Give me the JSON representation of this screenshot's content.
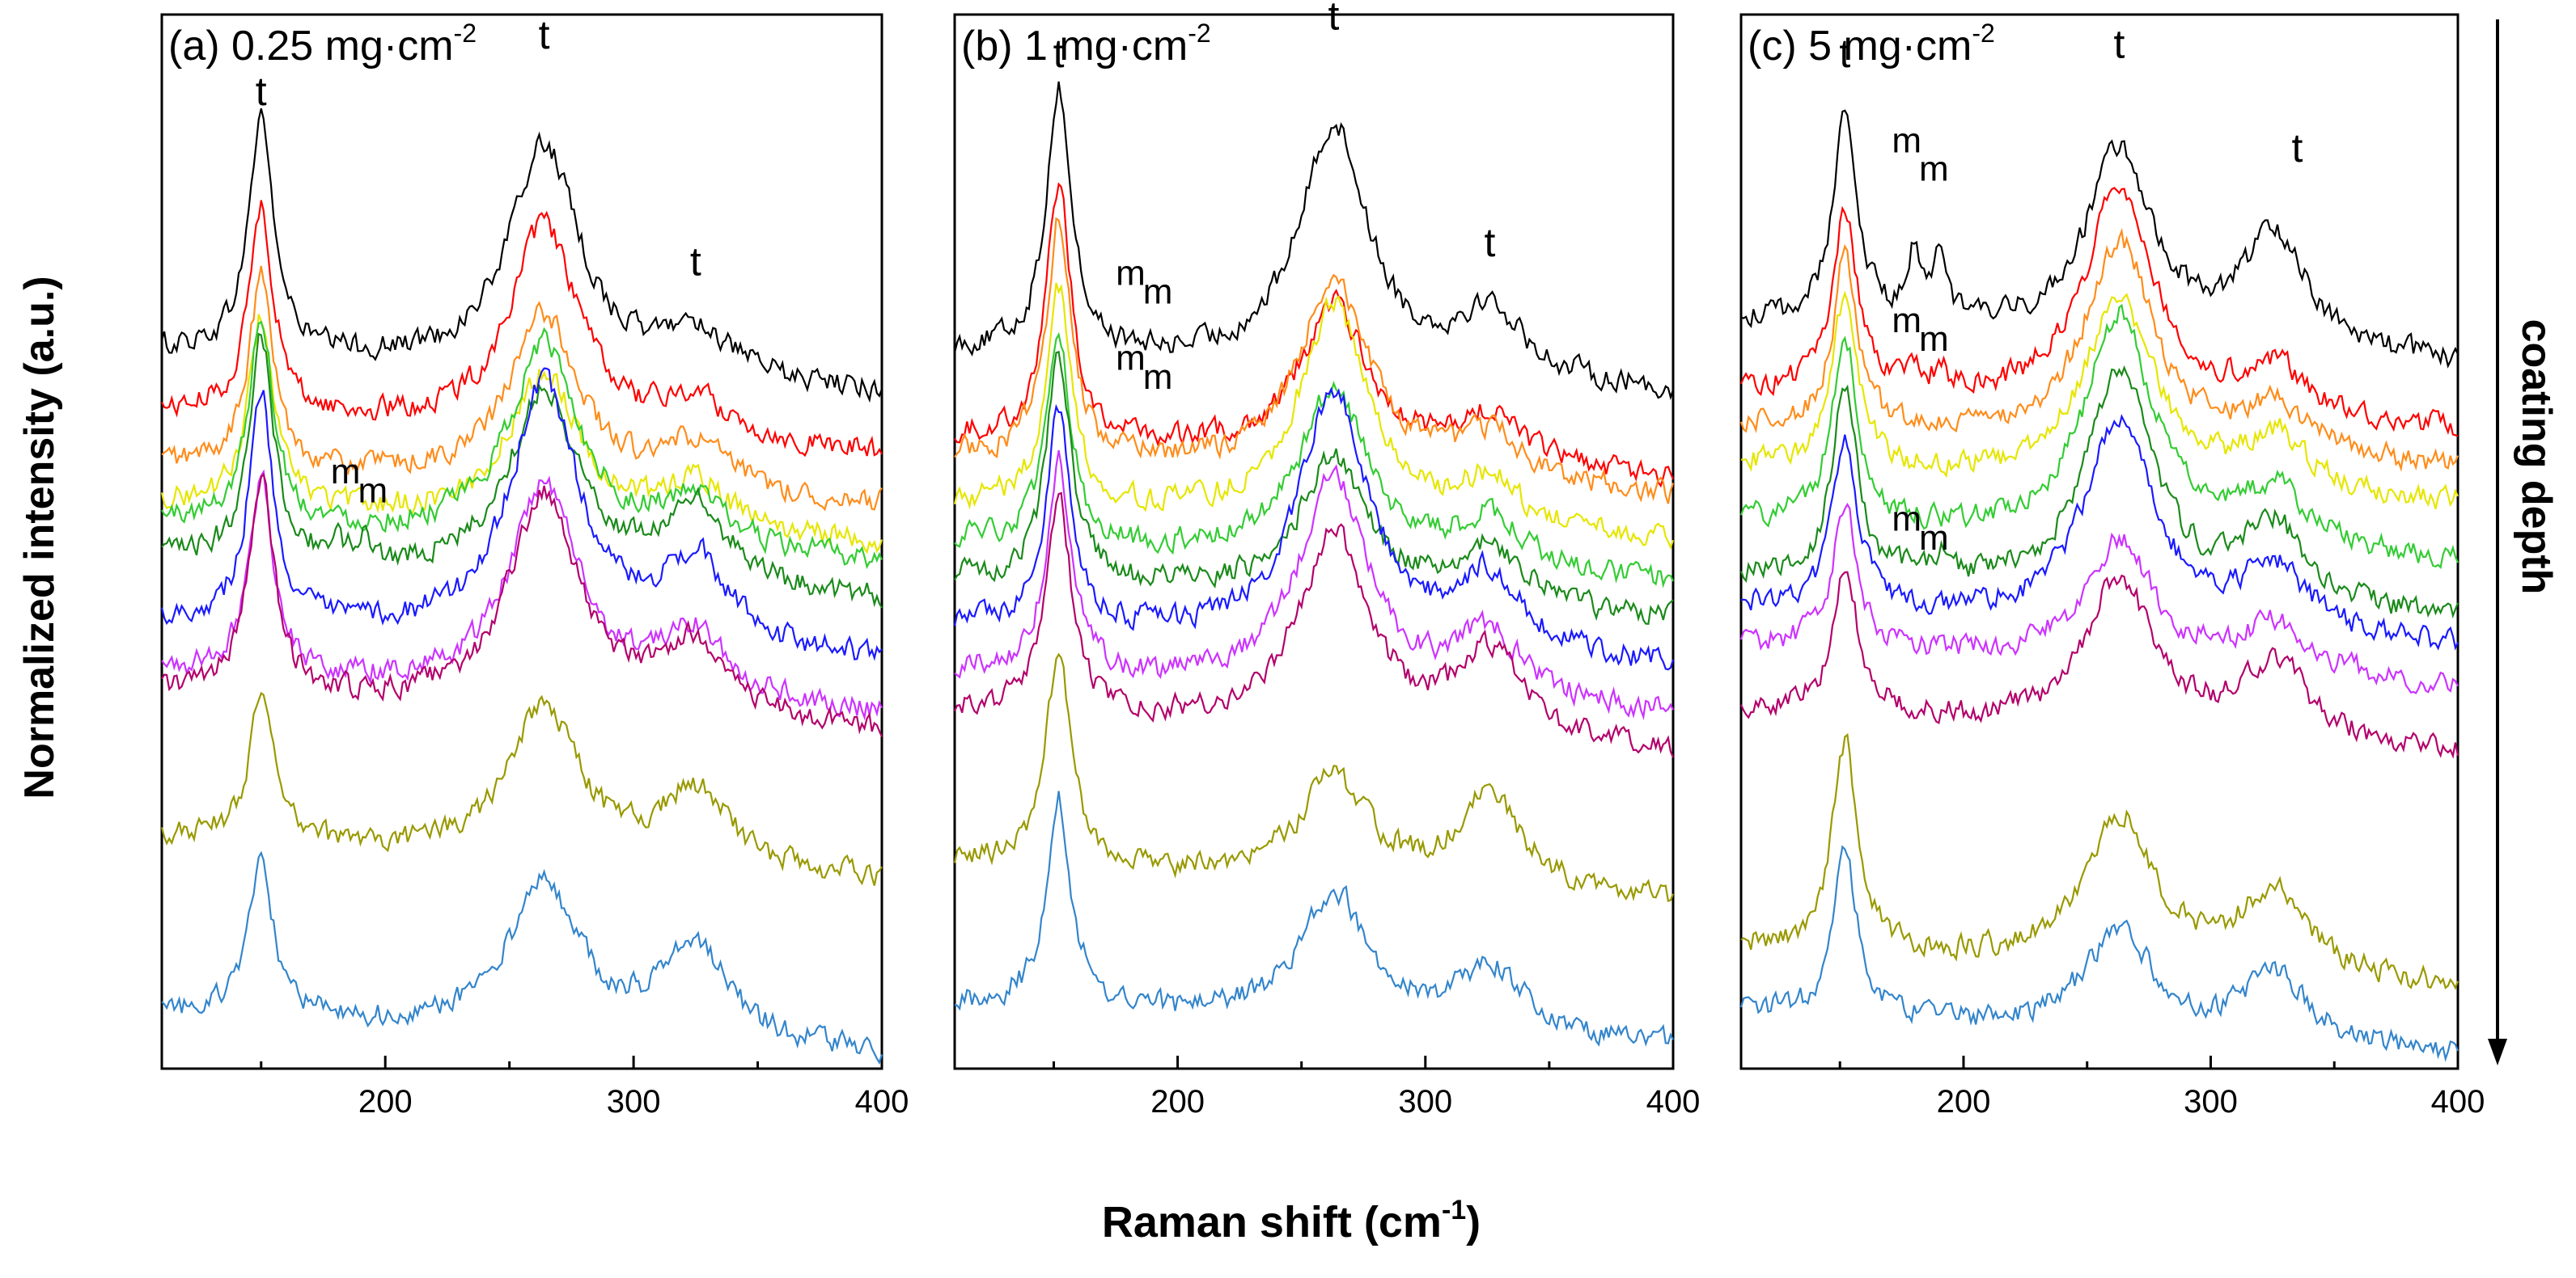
{
  "y_label": "Normalized intensity (a.u.)",
  "x_label": "Raman shift (cm",
  "x_label_sup": "-1",
  "x_label_close": ")",
  "depth_label": "coating depth",
  "series_colors": [
    "#000000",
    "#ff0000",
    "#ff8c1a",
    "#e6e600",
    "#33cc33",
    "#1a8a1a",
    "#1a1aff",
    "#cc33ff",
    "#b3006b",
    "#999900",
    "#3385cc"
  ],
  "chart_data": [
    {
      "type": "line",
      "panel": "a",
      "title": "(a) 0.25 mg·cm",
      "title_sup": "-2",
      "xlim": [
        110,
        400
      ],
      "x_ticks": [
        200,
        300,
        400
      ],
      "x_tick_labels": [
        "200",
        "300",
        "400"
      ],
      "peaks": {
        "p1": 150,
        "p2": 264,
        "p3": 325,
        "m1": 180,
        "m2": 191
      },
      "series": [
        {
          "color": "#000000",
          "baseline": 0.74,
          "a1": 0.25,
          "a2": 0.24,
          "a3": 0.05,
          "am": 0.0
        },
        {
          "color": "#ff0000",
          "baseline": 0.675,
          "a1": 0.22,
          "a2": 0.22,
          "a3": 0.04,
          "am": 0.0
        },
        {
          "color": "#ff8c1a",
          "baseline": 0.62,
          "a1": 0.2,
          "a2": 0.18,
          "a3": 0.05,
          "am": 0.0
        },
        {
          "color": "#e6e600",
          "baseline": 0.58,
          "a1": 0.2,
          "a2": 0.16,
          "a3": 0.05,
          "am": 0.0
        },
        {
          "color": "#33cc33",
          "baseline": 0.56,
          "a1": 0.22,
          "a2": 0.21,
          "a3": 0.05,
          "am": 0.0
        },
        {
          "color": "#1a8a1a",
          "baseline": 0.52,
          "a1": 0.24,
          "a2": 0.2,
          "a3": 0.08,
          "am": 0.02
        },
        {
          "color": "#1a1aff",
          "baseline": 0.455,
          "a1": 0.24,
          "a2": 0.27,
          "a3": 0.09,
          "am": 0.0
        },
        {
          "color": "#cc33ff",
          "baseline": 0.4,
          "a1": 0.21,
          "a2": 0.22,
          "a3": 0.07,
          "am": 0.0
        },
        {
          "color": "#b3006b",
          "baseline": 0.38,
          "a1": 0.23,
          "a2": 0.23,
          "a3": 0.08,
          "am": 0.0
        },
        {
          "color": "#999900",
          "baseline": 0.225,
          "a1": 0.15,
          "a2": 0.16,
          "a3": 0.08,
          "am": 0.0
        },
        {
          "color": "#3385cc",
          "baseline": 0.04,
          "a1": 0.16,
          "a2": 0.16,
          "a3": 0.1,
          "am": 0.0
        }
      ],
      "annotations": [
        {
          "text": "t",
          "x": 150,
          "y": 1.0
        },
        {
          "text": "t",
          "x": 264,
          "y": 1.06
        },
        {
          "text": "t",
          "x": 325,
          "y": 0.82
        },
        {
          "text": "m",
          "x": 184,
          "y": 0.6
        },
        {
          "text": "m",
          "x": 195,
          "y": 0.58
        }
      ]
    },
    {
      "type": "line",
      "panel": "b",
      "title": "(b) 1 mg·cm",
      "title_sup": "-2",
      "xlim": [
        110,
        400
      ],
      "x_ticks": [
        200,
        300,
        400
      ],
      "x_tick_labels": [
        "200",
        "300",
        "400"
      ],
      "peaks": {
        "p1": 152,
        "p2": 263,
        "p3": 326,
        "m1": 180,
        "m2": 191
      },
      "series": [
        {
          "color": "#000000",
          "baseline": 0.74,
          "a1": 0.28,
          "a2": 0.26,
          "a3": 0.07,
          "am": 0.0
        },
        {
          "color": "#ff0000",
          "baseline": 0.65,
          "a1": 0.27,
          "a2": 0.16,
          "a3": 0.05,
          "am": 0.0
        },
        {
          "color": "#ff8c1a",
          "baseline": 0.63,
          "a1": 0.25,
          "a2": 0.21,
          "a3": 0.05,
          "am": 0.0
        },
        {
          "color": "#e6e600",
          "baseline": 0.58,
          "a1": 0.23,
          "a2": 0.23,
          "a3": 0.05,
          "am": 0.0
        },
        {
          "color": "#33cc33",
          "baseline": 0.54,
          "a1": 0.21,
          "a2": 0.18,
          "a3": 0.05,
          "am": 0.0
        },
        {
          "color": "#1a8a1a",
          "baseline": 0.5,
          "a1": 0.24,
          "a2": 0.15,
          "a3": 0.06,
          "am": 0.0
        },
        {
          "color": "#1a1aff",
          "baseline": 0.45,
          "a1": 0.23,
          "a2": 0.27,
          "a3": 0.08,
          "am": 0.0
        },
        {
          "color": "#cc33ff",
          "baseline": 0.4,
          "a1": 0.23,
          "a2": 0.23,
          "a3": 0.07,
          "am": 0.0
        },
        {
          "color": "#b3006b",
          "baseline": 0.36,
          "a1": 0.23,
          "a2": 0.21,
          "a3": 0.09,
          "am": 0.0
        },
        {
          "color": "#999900",
          "baseline": 0.2,
          "a1": 0.23,
          "a2": 0.11,
          "a3": 0.1,
          "am": 0.0
        },
        {
          "color": "#3385cc",
          "baseline": 0.05,
          "a1": 0.22,
          "a2": 0.14,
          "a3": 0.07,
          "am": 0.0
        }
      ],
      "annotations": [
        {
          "text": "t",
          "x": 152,
          "y": 1.04
        },
        {
          "text": "t",
          "x": 263,
          "y": 1.08
        },
        {
          "text": "t",
          "x": 326,
          "y": 0.84
        },
        {
          "text": "m",
          "x": 181,
          "y": 0.81
        },
        {
          "text": "m",
          "x": 192,
          "y": 0.79
        },
        {
          "text": "m",
          "x": 181,
          "y": 0.72
        },
        {
          "text": "m",
          "x": 192,
          "y": 0.7
        }
      ]
    },
    {
      "type": "line",
      "panel": "c",
      "title": "(c) 5 mg·cm",
      "title_sup": "-2",
      "xlim": [
        110,
        400
      ],
      "x_ticks": [
        200,
        300,
        400
      ],
      "x_tick_labels": [
        "200",
        "300",
        "400"
      ],
      "peaks": {
        "p1": 152,
        "p2": 263,
        "p3": 326,
        "m1": 180,
        "m2": 191
      },
      "series": [
        {
          "color": "#000000",
          "baseline": 0.77,
          "a1": 0.22,
          "a2": 0.2,
          "a3": 0.12,
          "am": 0.07
        },
        {
          "color": "#ff0000",
          "baseline": 0.7,
          "a1": 0.19,
          "a2": 0.24,
          "a3": 0.05,
          "am": 0.02
        },
        {
          "color": "#ff8c1a",
          "baseline": 0.66,
          "a1": 0.18,
          "a2": 0.22,
          "a3": 0.05,
          "am": 0.0
        },
        {
          "color": "#e6e600",
          "baseline": 0.62,
          "a1": 0.18,
          "a2": 0.2,
          "a3": 0.06,
          "am": 0.0
        },
        {
          "color": "#33cc33",
          "baseline": 0.56,
          "a1": 0.2,
          "a2": 0.24,
          "a3": 0.06,
          "am": 0.0
        },
        {
          "color": "#1a8a1a",
          "baseline": 0.5,
          "a1": 0.21,
          "a2": 0.24,
          "a3": 0.08,
          "am": 0.02
        },
        {
          "color": "#1a1aff",
          "baseline": 0.47,
          "a1": 0.18,
          "a2": 0.22,
          "a3": 0.07,
          "am": 0.0
        },
        {
          "color": "#cc33ff",
          "baseline": 0.43,
          "a1": 0.15,
          "a2": 0.13,
          "a3": 0.05,
          "am": 0.0
        },
        {
          "color": "#b3006b",
          "baseline": 0.36,
          "a1": 0.16,
          "a2": 0.16,
          "a3": 0.08,
          "am": 0.0
        },
        {
          "color": "#999900",
          "baseline": 0.11,
          "a1": 0.22,
          "a2": 0.16,
          "a3": 0.09,
          "am": 0.0
        },
        {
          "color": "#3385cc",
          "baseline": 0.04,
          "a1": 0.17,
          "a2": 0.11,
          "a3": 0.07,
          "am": 0.0
        }
      ],
      "annotations": [
        {
          "text": "t",
          "x": 152,
          "y": 1.04
        },
        {
          "text": "t",
          "x": 263,
          "y": 1.05
        },
        {
          "text": "t",
          "x": 335,
          "y": 0.94
        },
        {
          "text": "m",
          "x": 177,
          "y": 0.95
        },
        {
          "text": "m",
          "x": 188,
          "y": 0.92
        },
        {
          "text": "m",
          "x": 177,
          "y": 0.76
        },
        {
          "text": "m",
          "x": 188,
          "y": 0.74
        },
        {
          "text": "m",
          "x": 177,
          "y": 0.55
        },
        {
          "text": "m",
          "x": 188,
          "y": 0.53
        }
      ]
    }
  ]
}
